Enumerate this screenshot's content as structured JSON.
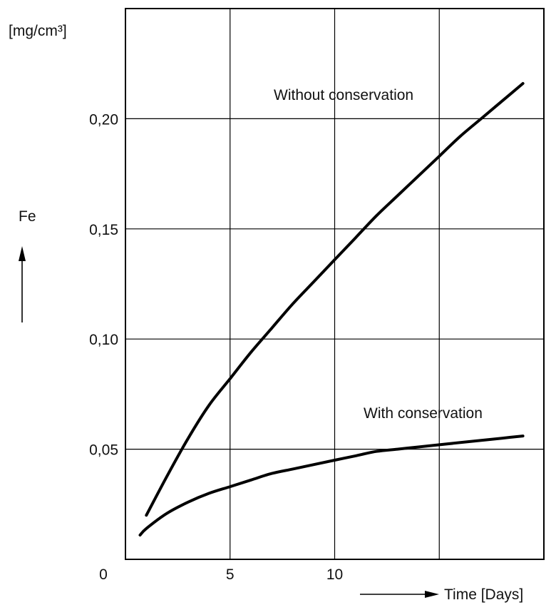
{
  "chart_data": {
    "type": "line",
    "y_unit": "[mg/cm³]",
    "y_label": "Fe",
    "x_label": "Time [Days]",
    "origin_label": "0",
    "xlim": [
      0,
      20
    ],
    "ylim": [
      0,
      0.25
    ],
    "x_ticks": [
      5,
      10
    ],
    "x_tick_labels": [
      "5",
      "10"
    ],
    "y_ticks": [
      0.05,
      0.1,
      0.15,
      0.2
    ],
    "y_tick_labels": [
      "0,05",
      "0,10",
      "0,15",
      "0,20"
    ],
    "x_grid": [
      5,
      10,
      15
    ],
    "y_grid": [
      0.05,
      0.1,
      0.15,
      0.2
    ],
    "grid": true,
    "series": [
      {
        "name": "Without conservation",
        "x": [
          1,
          2,
          3,
          4,
          5,
          6,
          7,
          8,
          9,
          10,
          11,
          12,
          13,
          14,
          15,
          16,
          17,
          18,
          19
        ],
        "y": [
          0.02,
          0.038,
          0.055,
          0.07,
          0.082,
          0.094,
          0.105,
          0.116,
          0.126,
          0.136,
          0.146,
          0.156,
          0.165,
          0.174,
          0.183,
          0.192,
          0.2,
          0.208,
          0.216
        ]
      },
      {
        "name": "With conservation",
        "x": [
          0.7,
          1,
          2,
          3,
          4,
          5,
          6,
          7,
          8,
          9,
          10,
          11,
          12,
          13,
          14,
          15,
          16,
          17,
          18,
          19
        ],
        "y": [
          0.011,
          0.014,
          0.021,
          0.026,
          0.03,
          0.033,
          0.036,
          0.039,
          0.041,
          0.043,
          0.045,
          0.047,
          0.049,
          0.05,
          0.051,
          0.052,
          0.053,
          0.054,
          0.055,
          0.056
        ]
      }
    ]
  }
}
